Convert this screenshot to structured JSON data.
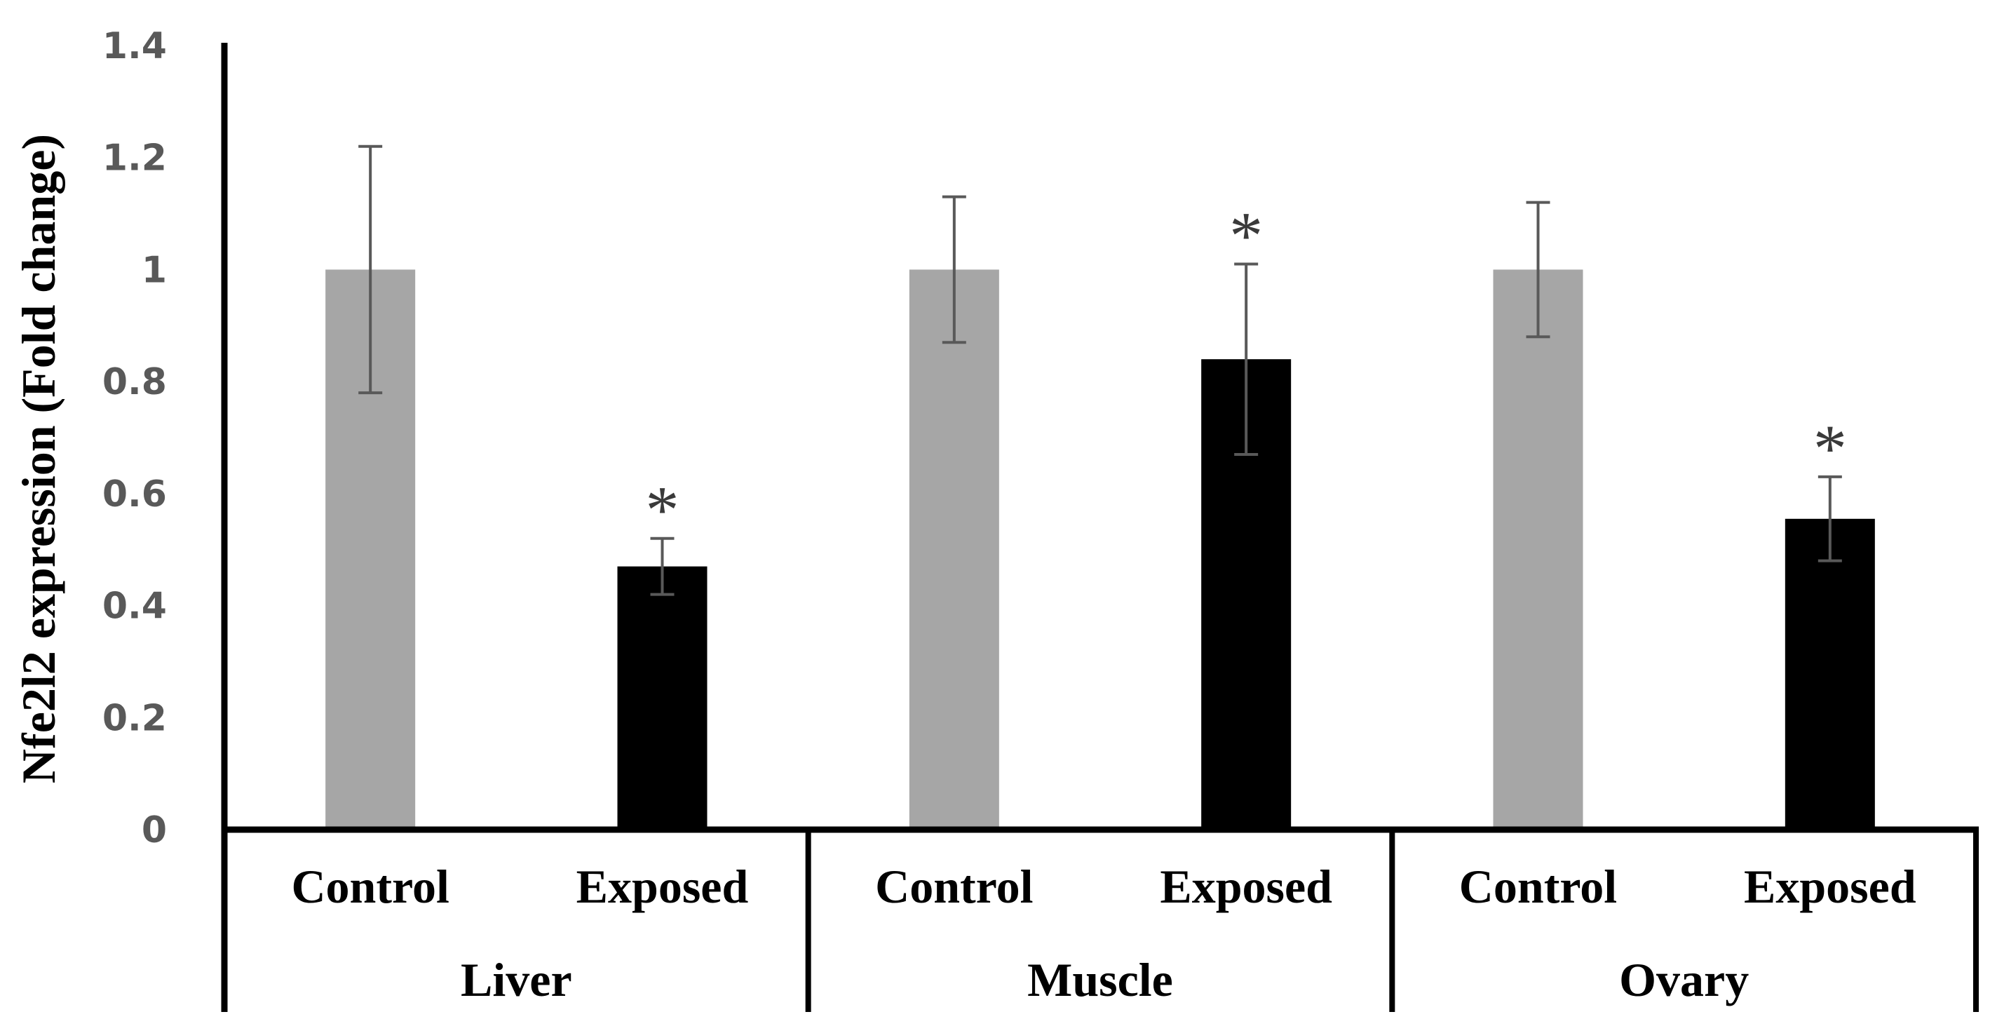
{
  "chart_data": {
    "type": "bar",
    "title": "",
    "ylabel": "Nfe2l2 expression (Fold change)",
    "xlabel": "",
    "ylim": [
      0,
      1.4
    ],
    "yticks": [
      "0",
      "0.2",
      "0.4",
      "0.6",
      "0.8",
      "1",
      "1.2",
      "1.4"
    ],
    "grid": false,
    "groups": [
      {
        "label": "Liver",
        "bars": [
          {
            "label": "Control",
            "value": 1.0,
            "error": 0.22,
            "color": "#a6a6a6",
            "significance": ""
          },
          {
            "label": "Exposed",
            "value": 0.47,
            "error": 0.05,
            "color": "#000000",
            "significance": "*"
          }
        ]
      },
      {
        "label": "Muscle",
        "bars": [
          {
            "label": "Control",
            "value": 1.0,
            "error": 0.13,
            "color": "#a6a6a6",
            "significance": ""
          },
          {
            "label": "Exposed",
            "value": 0.84,
            "error": 0.17,
            "color": "#000000",
            "significance": "*"
          }
        ]
      },
      {
        "label": "Ovary",
        "bars": [
          {
            "label": "Control",
            "value": 1.0,
            "error": 0.12,
            "color": "#a6a6a6",
            "significance": ""
          },
          {
            "label": "Exposed",
            "value": 0.555,
            "error": 0.075,
            "color": "#000000",
            "significance": "*"
          }
        ]
      }
    ],
    "colors": {
      "axis": "#000000",
      "error_bar": "#595959",
      "tick_text": "#595959"
    }
  }
}
